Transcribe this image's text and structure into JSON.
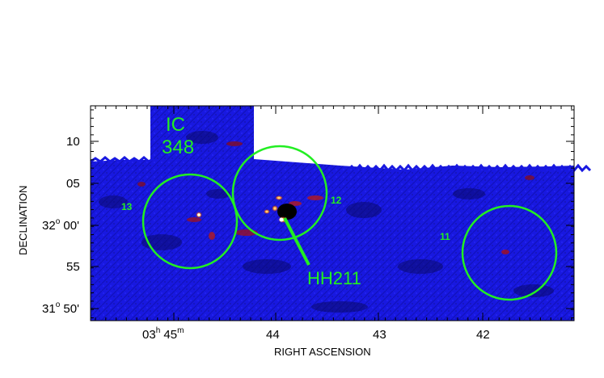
{
  "figure": {
    "x_axis_title": "RIGHT ASCENSION",
    "y_axis_title": "DECLINATION",
    "colors": {
      "map_blue": "#1a1ae6",
      "emission_red": "#b01010",
      "emission_bright": "#ffd27a",
      "annotation_green": "#22ee22"
    },
    "x_ticks": [
      {
        "h": "03",
        "m": "45",
        "label": "03h 45m"
      },
      {
        "label": "44"
      },
      {
        "label": "43"
      },
      {
        "label": "42"
      }
    ],
    "y_ticks": [
      {
        "label": "10"
      },
      {
        "label": "05"
      },
      {
        "deg": "32",
        "min": "00'",
        "label": "32o 00'"
      },
      {
        "label": "55"
      },
      {
        "deg": "31",
        "min": "50'",
        "label": "31o 50'"
      }
    ],
    "labels": {
      "ic348_line1": "IC",
      "ic348_line2": "348",
      "hh211": "HH211",
      "field_13": "13",
      "field_12": "12",
      "field_11": "11"
    }
  }
}
